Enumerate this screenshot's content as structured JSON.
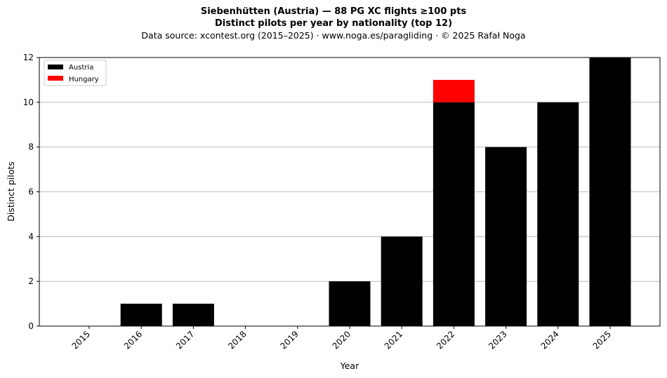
{
  "chart_data": {
    "type": "bar",
    "stacked": true,
    "title": "Siebenhütten (Austria)  —  88 PG XC flights ≥100 pts",
    "subtitle": "Distinct pilots per year by nationality (top 12)",
    "source_line": "Data source: xcontest.org (2015–2025)  ·  www.noga.es/paragliding  ·  © 2025 Rafał Noga",
    "xlabel": "Year",
    "ylabel": "Distinct pilots",
    "categories": [
      "2015",
      "2016",
      "2017",
      "2018",
      "2019",
      "2020",
      "2021",
      "2022",
      "2023",
      "2024",
      "2025"
    ],
    "series": [
      {
        "name": "Austria",
        "color": "#000000",
        "values": [
          0,
          1,
          1,
          0,
          0,
          2,
          4,
          10,
          8,
          10,
          12
        ]
      },
      {
        "name": "Hungary",
        "color": "#ff0000",
        "values": [
          0,
          0,
          0,
          0,
          0,
          0,
          0,
          1,
          0,
          0,
          0
        ]
      }
    ],
    "ylim": [
      0,
      12
    ],
    "yticks": [
      0,
      2,
      4,
      6,
      8,
      10,
      12
    ],
    "grid": "y",
    "legend_position": "top-left"
  }
}
